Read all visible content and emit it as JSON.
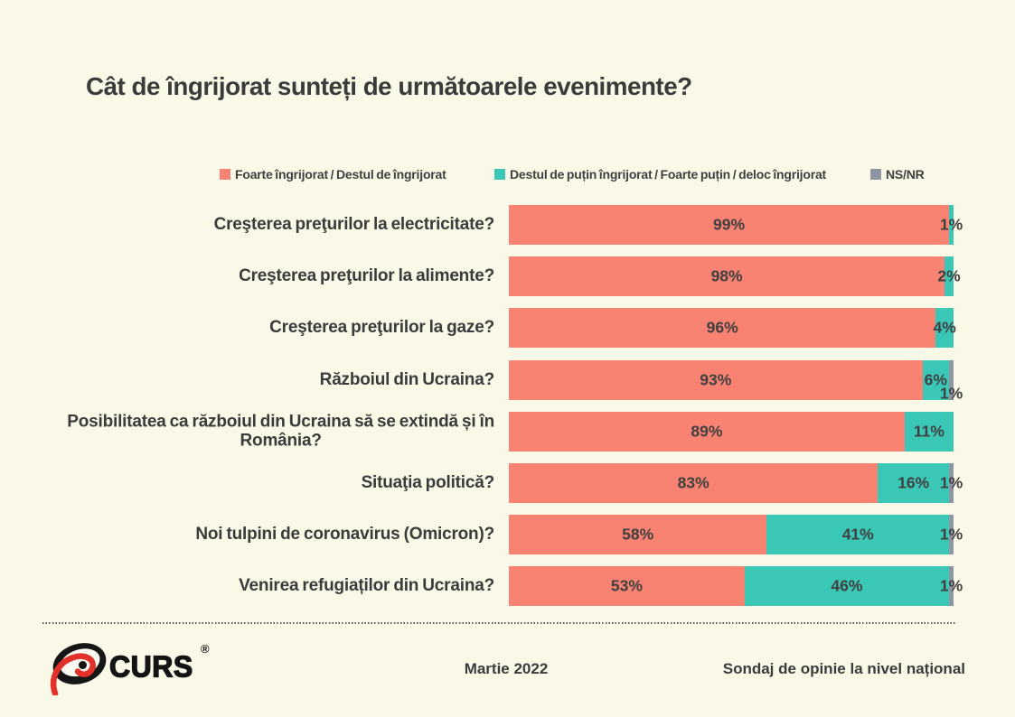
{
  "title": "Cât de îngrijorat sunteți de următoarele evenimente?",
  "legend": [
    {
      "label": "Foarte îngrijorat / Destul de îngrijorat",
      "color": "#F88372"
    },
    {
      "label": "Destul de puțin îngrijorat / Foarte puțin / deloc îngrijorat",
      "color": "#3AC7B6"
    },
    {
      "label": "NS/NR",
      "color": "#8E96A4"
    }
  ],
  "chart_data": {
    "type": "bar",
    "orientation": "horizontal",
    "stacked": true,
    "xlim": [
      0,
      100
    ],
    "categories": [
      "Creşterea preţurilor la electricitate?",
      "Creşterea preţurilor la alimente?",
      "Creşterea preţurilor la gaze?",
      "Războiul din Ucraina?",
      "Posibilitatea ca războiul din Ucraina să se extindă și în\nRomânia?",
      "Situaţia politică?",
      "Noi tulpini de coronavirus (Omicron)?",
      "Venirea refugiaților din Ucraina?"
    ],
    "series": [
      {
        "name": "Foarte îngrijorat / Destul de îngrijorat",
        "color": "#F88372",
        "values": [
          99,
          98,
          96,
          93,
          89,
          83,
          58,
          53
        ]
      },
      {
        "name": "Destul de puțin îngrijorat / Foarte puțin / deloc îngrijorat",
        "color": "#3AC7B6",
        "values": [
          1,
          2,
          4,
          6,
          11,
          16,
          41,
          46
        ]
      },
      {
        "name": "NS/NR",
        "color": "#8E96A4",
        "values": [
          0,
          0,
          0,
          1,
          0,
          1,
          1,
          1
        ]
      }
    ]
  },
  "footer": {
    "logo_text": "CURS",
    "registered": "®",
    "center": "Martie 2022",
    "right": "Sondaj de opinie la nivel național"
  }
}
